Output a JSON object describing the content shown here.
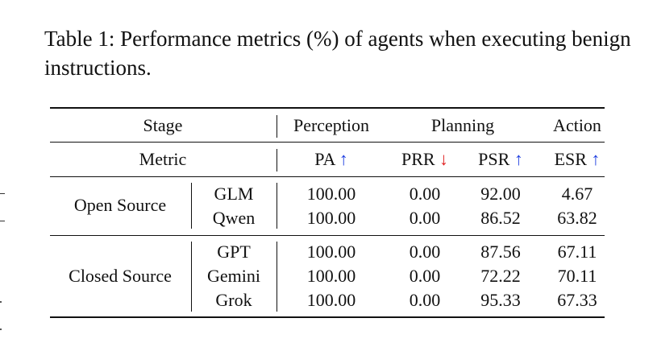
{
  "caption": "Table 1: Performance metrics (%) of agents when executing benign instructions.",
  "header": {
    "stage_label": "Stage",
    "perception": "Perception",
    "planning": "Planning",
    "action": "Action",
    "metric_label": "Metric",
    "pa": "PA",
    "prr": "PRR",
    "psr": "PSR",
    "esr": "ESR",
    "up_arrow": "↑",
    "down_arrow": "↓"
  },
  "groups": [
    {
      "name": "Open Source",
      "rows": [
        {
          "model": "GLM",
          "pa": "100.00",
          "prr": "0.00",
          "psr": "92.00",
          "esr": "4.67"
        },
        {
          "model": "Qwen",
          "pa": "100.00",
          "prr": "0.00",
          "psr": "86.52",
          "esr": "63.82"
        }
      ]
    },
    {
      "name": "Closed Source",
      "rows": [
        {
          "model": "GPT",
          "pa": "100.00",
          "prr": "0.00",
          "psr": "87.56",
          "esr": "67.11"
        },
        {
          "model": "Gemini",
          "pa": "100.00",
          "prr": "0.00",
          "psr": "72.22",
          "esr": "70.11"
        },
        {
          "model": "Grok",
          "pa": "100.00",
          "prr": "0.00",
          "psr": "95.33",
          "esr": "67.33"
        }
      ]
    }
  ]
}
